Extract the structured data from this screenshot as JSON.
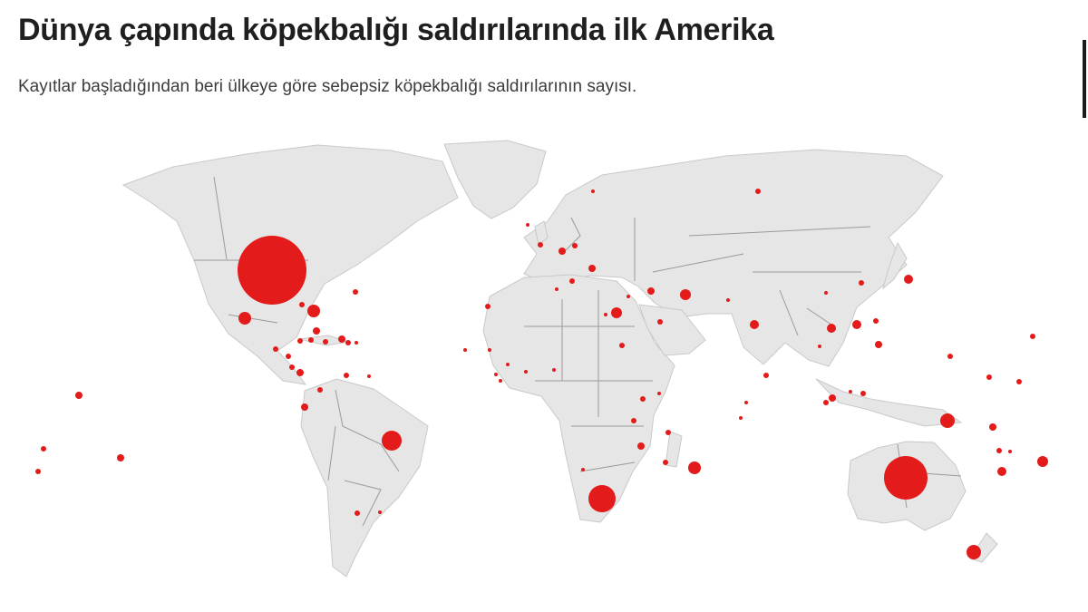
{
  "title": "Dünya çapında köpekbalığı saldırılarında ilk Amerika",
  "subtitle": "Kayıtlar başladığından beri ülkeye göre sebepsiz köpekbalığı saldırılarının sayısı.",
  "colors": {
    "marker": "#e31b1b",
    "land": "#e6e6e6",
    "border": "#9a9a9a",
    "title": "#1f1f1f",
    "subtitle": "#3c3c3c"
  }
}
